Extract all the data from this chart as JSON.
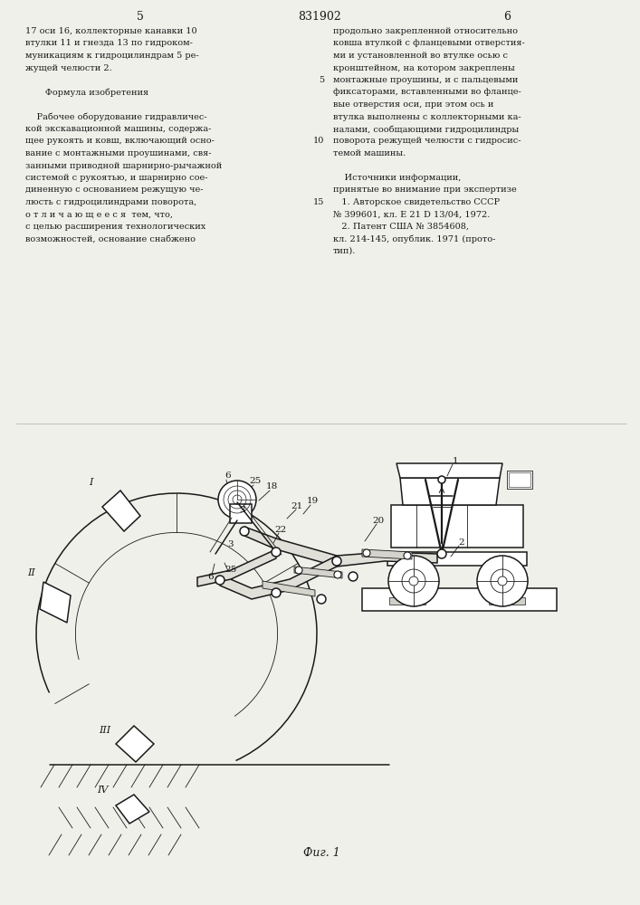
{
  "page_number_left": "5",
  "page_number_center": "831902",
  "page_number_right": "6",
  "text_left_col": [
    "17 оси 16, коллекторные канавки 10",
    "втулки 11 и гнезда 13 по гидроком-",
    "муникациям к гидроцилиндрам 5 ре-",
    "жущей челюсти 2.",
    "",
    "       Формула изобретения",
    "",
    "    Рабочее оборудование гидравличес-",
    "кой экскавационной машины, содержа-",
    "щее рукоять и ковш, включающий осно-",
    "вание с монтажными проушинами, свя-",
    "занными приводной шарнирно-рычажной",
    "системой с рукоятью, и шарнирно сое-",
    "диненную с основанием режущую че-",
    "люсть с гидроцилиндрами поворота,",
    "о т л и ч а ю щ е е с я  тем, что,",
    "с целью расширения технологических",
    "возможностей, основание снабжено"
  ],
  "text_right_col": [
    "продольно закрепленной относительно",
    "ковша втулкой с фланцевыми отверстия-",
    "ми и установленной во втулке осью с",
    "кронштейном, на котором закреплены",
    "монтажные проушины, и с пальцевыми",
    "фиксаторами, вставленными во фланце-",
    "вые отверстия оси, при этом ось и",
    "втулка выполнены с коллекторными ка-",
    "налами, сообщающими гидроцилиндры",
    "поворота режущей челюсти с гидросис-",
    "темой машины.",
    "",
    "    Источники информации,",
    "принятые во внимание при экспертизе",
    "   1. Авторское свидетельство СССР",
    "№ 399601, кл. Е 21 D 13/04, 1972.",
    "   2. Патент США № 3854608,",
    "кл. 214-145, опублик. 1971 (прото-",
    "тип)."
  ],
  "fig_caption": "Фиг. 1",
  "bg_color": "#f0f0eb",
  "line_color": "#1a1a1a",
  "text_color": "#1a1a1a",
  "right_col_numbers": [
    "5",
    "10",
    "15"
  ]
}
